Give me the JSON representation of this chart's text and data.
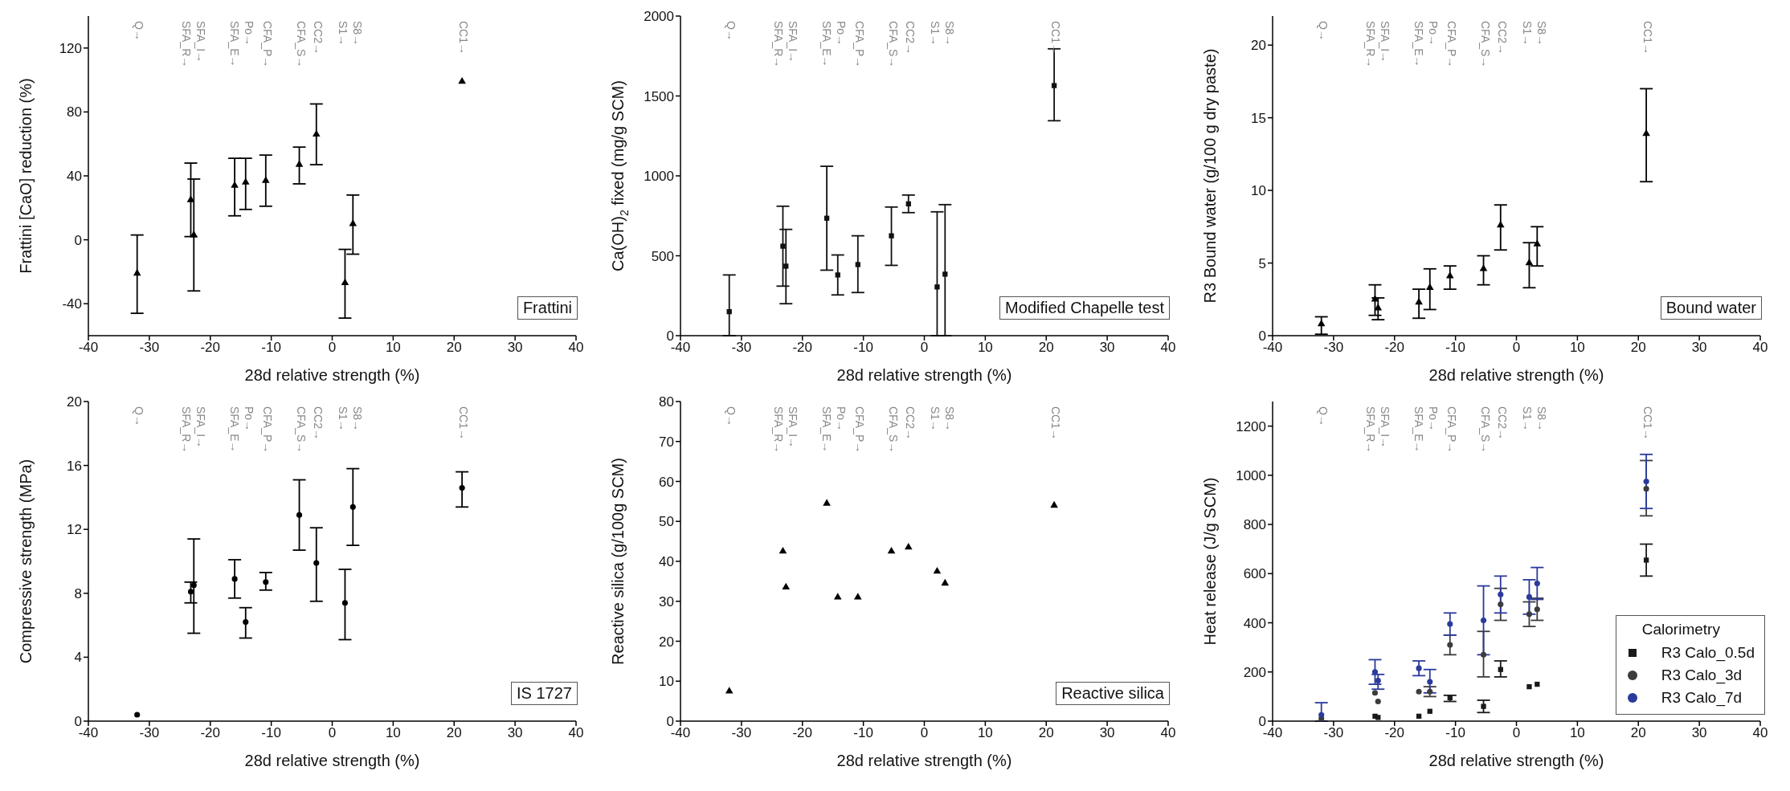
{
  "chart_data": [
    {
      "type": "scatter",
      "xlabel": "28d relative strength (%)",
      "ylabel": "Frattini [CaO] reduction (%)",
      "xlim": [
        -40,
        40
      ],
      "xticks": [
        -40,
        -30,
        -20,
        -10,
        0,
        10,
        20,
        30,
        40
      ],
      "ylim": [
        -60,
        140
      ],
      "yticks": [
        -40,
        0,
        40,
        80,
        120
      ],
      "marker": "triangle",
      "x": [
        -32,
        -23.2,
        -22.7,
        -16,
        -14.2,
        -10.9,
        -5.4,
        -2.6,
        2.1,
        3.4,
        21.3
      ],
      "series": [
        {
          "color": "#000000",
          "values": [
            -21,
            25,
            3,
            34,
            36,
            37,
            47,
            66,
            -27,
            10,
            99
          ],
          "errors": [
            [
              -46,
              3
            ],
            [
              2,
              48
            ],
            [
              -32,
              38
            ],
            [
              15,
              51
            ],
            [
              19,
              51
            ],
            [
              21,
              53
            ],
            [
              35,
              58
            ],
            [
              47,
              85
            ],
            [
              -49,
              -6
            ],
            [
              -9,
              28
            ],
            null
          ]
        }
      ],
      "annotations": [
        "Q→",
        "SFA_R→",
        "SFA_I→",
        "SFA_E→",
        "Po→",
        "CFA_P→",
        "CFA_S→",
        "CC2→",
        "S1→",
        "S8→",
        "CC1→",
        "Frattini"
      ]
    },
    {
      "type": "scatter",
      "xlabel": "28d relative strength (%)",
      "ylabel": "Ca(OH)$_{2}$ fixed (mg/g SCM)",
      "xlim": [
        -40,
        40
      ],
      "xticks": [
        -40,
        -30,
        -20,
        -10,
        0,
        10,
        20,
        30,
        40
      ],
      "ylim": [
        0,
        2000
      ],
      "yticks": [
        0,
        500,
        1000,
        1500,
        2000
      ],
      "marker": "square",
      "x": [
        -32,
        -23.2,
        -22.7,
        -16,
        -14.2,
        -10.9,
        -5.4,
        -2.6,
        2.1,
        3.4,
        21.3
      ],
      "series": [
        {
          "color": "#111111",
          "values": [
            150,
            560,
            435,
            735,
            380,
            445,
            625,
            825,
            305,
            385,
            1565
          ],
          "errors": [
            [
              0,
              380
            ],
            [
              310,
              810
            ],
            [
              200,
              665
            ],
            [
              410,
              1060
            ],
            [
              255,
              505
            ],
            [
              270,
              625
            ],
            [
              440,
              805
            ],
            [
              770,
              880
            ],
            [
              0,
              775
            ],
            [
              0,
              820
            ],
            [
              1345,
              1795
            ]
          ]
        }
      ],
      "annotations": [
        "Q→",
        "SFA_R→",
        "SFA_I→",
        "SFA_E→",
        "Po→",
        "CFA_P→",
        "CFA_S→",
        "CC2→",
        "S1→",
        "S8→",
        "CC1→",
        "Modified Chapelle test"
      ]
    },
    {
      "type": "scatter",
      "xlabel": "28d relative strength (%)",
      "ylabel": "R3 Bound water (g/100 g dry paste)",
      "xlim": [
        -40,
        40
      ],
      "xticks": [
        -40,
        -30,
        -20,
        -10,
        0,
        10,
        20,
        30,
        40
      ],
      "ylim": [
        0,
        22
      ],
      "yticks": [
        0,
        5,
        10,
        15,
        20
      ],
      "marker": "triangle",
      "x": [
        -32,
        -23.2,
        -22.7,
        -16,
        -14.2,
        -10.9,
        -5.4,
        -2.6,
        2.1,
        3.4,
        21.3
      ],
      "series": [
        {
          "color": "#000000",
          "values": [
            0.8,
            2.5,
            1.9,
            2.3,
            3.3,
            4.1,
            4.6,
            7.6,
            5.0,
            6.3,
            13.9
          ],
          "errors": [
            [
              0.1,
              1.3
            ],
            [
              1.4,
              3.5
            ],
            [
              1.1,
              2.6
            ],
            [
              1.2,
              3.2
            ],
            [
              1.8,
              4.6
            ],
            [
              3.2,
              4.8
            ],
            [
              3.5,
              5.5
            ],
            [
              5.9,
              9.0
            ],
            [
              3.3,
              6.4
            ],
            [
              4.8,
              7.5
            ],
            [
              10.6,
              17.0
            ]
          ]
        }
      ],
      "annotations": [
        "Q→",
        "SFA_R→",
        "SFA_I→",
        "SFA_E→",
        "Po→",
        "CFA_P→",
        "CFA_S→",
        "CC2→",
        "S1→",
        "S8→",
        "CC1→",
        "Bound water"
      ]
    },
    {
      "type": "scatter",
      "xlabel": "28d relative strength (%)",
      "ylabel": "Compressive strength (MPa)",
      "xlim": [
        -40,
        40
      ],
      "xticks": [
        -40,
        -30,
        -20,
        -10,
        0,
        10,
        20,
        30,
        40
      ],
      "ylim": [
        0,
        20
      ],
      "yticks": [
        0,
        4,
        8,
        12,
        16,
        20
      ],
      "marker": "circle",
      "x": [
        -32,
        -23.2,
        -22.7,
        -16,
        -14.2,
        -10.9,
        -5.4,
        -2.6,
        2.1,
        3.4,
        21.3
      ],
      "series": [
        {
          "color": "#000000",
          "values": [
            0.4,
            8.1,
            8.5,
            8.9,
            6.2,
            8.7,
            12.9,
            9.9,
            7.4,
            13.4,
            14.6
          ],
          "errors": [
            null,
            [
              7.4,
              8.7
            ],
            [
              5.5,
              11.4
            ],
            [
              7.7,
              10.1
            ],
            [
              5.2,
              7.1
            ],
            [
              8.2,
              9.3
            ],
            [
              10.7,
              15.1
            ],
            [
              7.5,
              12.1
            ],
            [
              5.1,
              9.5
            ],
            [
              11.0,
              15.8
            ],
            [
              13.4,
              15.6
            ]
          ]
        }
      ],
      "annotations": [
        "Q→",
        "SFA_R→",
        "SFA_I→",
        "SFA_E→",
        "Po→",
        "CFA_P→",
        "CFA_S→",
        "CC2→",
        "S1→",
        "S8→",
        "CC1→",
        "IS 1727"
      ]
    },
    {
      "type": "scatter",
      "xlabel": "28d relative strength (%)",
      "ylabel": "Reactive silica (g/100g SCM)",
      "xlim": [
        -40,
        40
      ],
      "xticks": [
        -40,
        -30,
        -20,
        -10,
        0,
        10,
        20,
        30,
        40
      ],
      "ylim": [
        0,
        80
      ],
      "yticks": [
        0,
        10,
        20,
        30,
        40,
        50,
        60,
        70,
        80
      ],
      "marker": "triangle",
      "x": [
        -32,
        -23.2,
        -22.7,
        -16,
        -14.2,
        -10.9,
        -5.4,
        -2.6,
        2.1,
        3.4,
        21.3
      ],
      "series": [
        {
          "color": "#000000",
          "values": [
            7.5,
            42.5,
            33.5,
            54.5,
            31,
            31,
            42.5,
            43.5,
            37.5,
            34.5,
            54
          ]
        }
      ],
      "annotations": [
        "Q→",
        "SFA_R→",
        "SFA_I→",
        "SFA_E→",
        "Po→",
        "CFA_P→",
        "CFA_S→",
        "CC2→",
        "S1→",
        "S8→",
        "CC1→",
        "Reactive silica"
      ]
    },
    {
      "type": "scatter",
      "xlabel": "28d relative strength (%)",
      "ylabel": "Heat release (J/g SCM)",
      "xlim": [
        -40,
        40
      ],
      "xticks": [
        -40,
        -30,
        -20,
        -10,
        0,
        10,
        20,
        30,
        40
      ],
      "ylim": [
        0,
        1300
      ],
      "yticks": [
        0,
        200,
        400,
        600,
        800,
        1000,
        1200
      ],
      "legend": "bottom right",
      "legend_title": "Calorimetry",
      "x": [
        -32,
        -23.2,
        -22.7,
        -16,
        -14.2,
        -10.9,
        -5.4,
        -2.6,
        2.1,
        3.4,
        21.3
      ],
      "series": [
        {
          "name": "R3 Calo_0.5d",
          "color": "#1a1a1a",
          "marker": "square",
          "values": [
            null,
            20,
            15,
            20,
            40,
            95,
            60,
            210,
            140,
            150,
            655
          ],
          "errors": [
            null,
            null,
            null,
            null,
            null,
            [
              80,
              105
            ],
            [
              35,
              85
            ],
            [
              180,
              245
            ],
            null,
            null,
            [
              590,
              720
            ]
          ]
        },
        {
          "name": "R3 Calo_3d",
          "color": "#3c3c3c",
          "marker": "circle",
          "values": [
            10,
            115,
            80,
            120,
            120,
            310,
            270,
            475,
            435,
            455,
            945
          ],
          "errors": [
            null,
            null,
            null,
            null,
            [
              100,
              140
            ],
            [
              270,
              350
            ],
            [
              180,
              365
            ],
            [
              410,
              540
            ],
            [
              385,
              485
            ],
            [
              410,
              500
            ],
            [
              835,
              1060
            ]
          ]
        },
        {
          "name": "R3 Calo_7d",
          "color": "#2b3a9c",
          "marker": "circle",
          "values": [
            25,
            200,
            165,
            215,
            160,
            395,
            410,
            515,
            505,
            560,
            975
          ],
          "errors": [
            [
              0,
              75
            ],
            [
              150,
              250
            ],
            [
              130,
              190
            ],
            [
              185,
              245
            ],
            [
              115,
              210
            ],
            [
              350,
              440
            ],
            [
              270,
              550
            ],
            [
              440,
              590
            ],
            [
              435,
              575
            ],
            [
              495,
              625
            ],
            [
              865,
              1085
            ]
          ]
        }
      ],
      "annotations": [
        "Q→",
        "SFA_R→",
        "SFA_I→",
        "SFA_E→",
        "Po→",
        "CFA_P→",
        "CFA_S→",
        "CC2→",
        "S1→",
        "S8→",
        "CC1→"
      ]
    }
  ]
}
